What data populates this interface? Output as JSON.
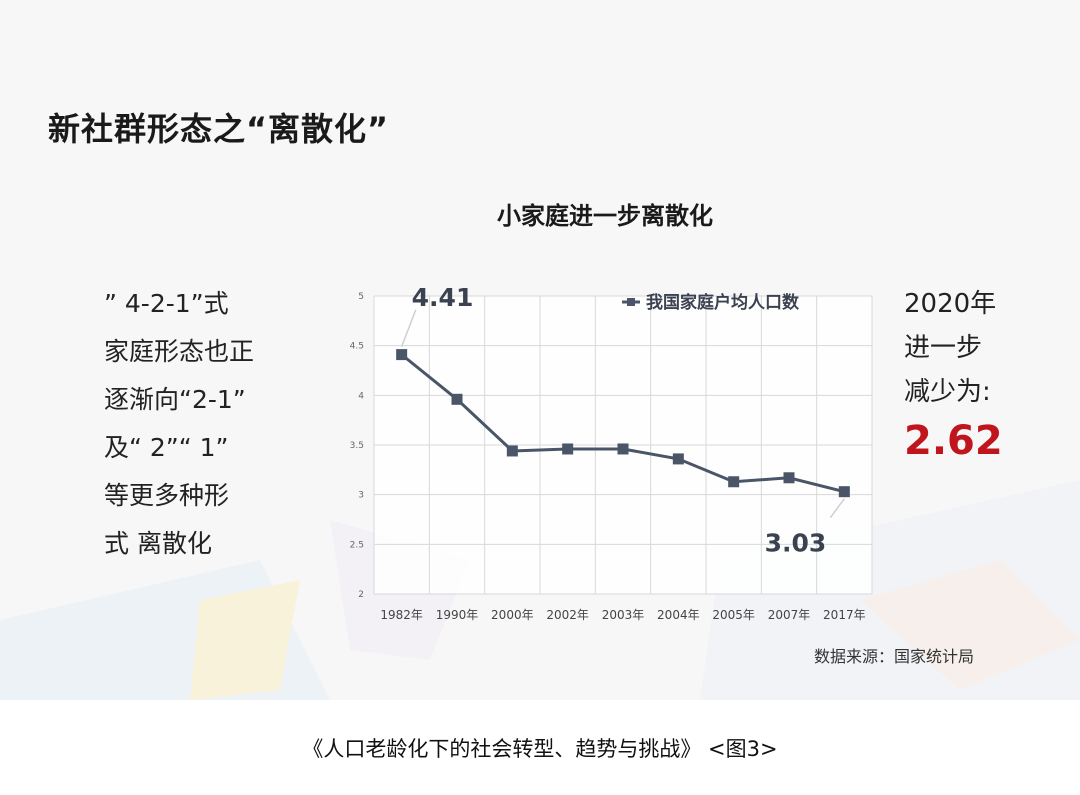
{
  "slide": {
    "title": "新社群形态之“离散化”",
    "left_text": [
      "” 4-2-1”式",
      "家庭形态也正",
      "逐渐向“2-1”",
      "及“ 2”“ 1”",
      "等更多种形",
      "式 离散化"
    ],
    "right_text": [
      "2020年",
      "进一步",
      "减少为:"
    ],
    "highlight_value": "2.62",
    "highlight_color": "#c0151c",
    "source": "数据来源：国家统计局"
  },
  "caption": "《人口老龄化下的社会转型、趋势与挑战》 <图3>",
  "chart_data": {
    "type": "line",
    "title": "小家庭进一步离散化",
    "categories": [
      "1982年",
      "1990年",
      "2000年",
      "2002年",
      "2003年",
      "2004年",
      "2005年",
      "2007年",
      "2017年"
    ],
    "series": [
      {
        "name": "我国家庭户均人口数",
        "values": [
          4.41,
          3.96,
          3.44,
          3.46,
          3.46,
          3.36,
          3.13,
          3.17,
          3.03
        ],
        "color": "#4a5568"
      }
    ],
    "ylim": [
      2,
      5
    ],
    "yticks": [
      2,
      2.5,
      3,
      3.5,
      4,
      4.5,
      5
    ],
    "ytick_labels": [
      "2",
      "2.5",
      "3",
      "3.5",
      "4",
      "4.5",
      "5"
    ],
    "annotations": [
      {
        "text": "4.41",
        "index": 0
      },
      {
        "text": "3.03",
        "index": 8
      }
    ],
    "grid": true,
    "legend": "top-right"
  }
}
